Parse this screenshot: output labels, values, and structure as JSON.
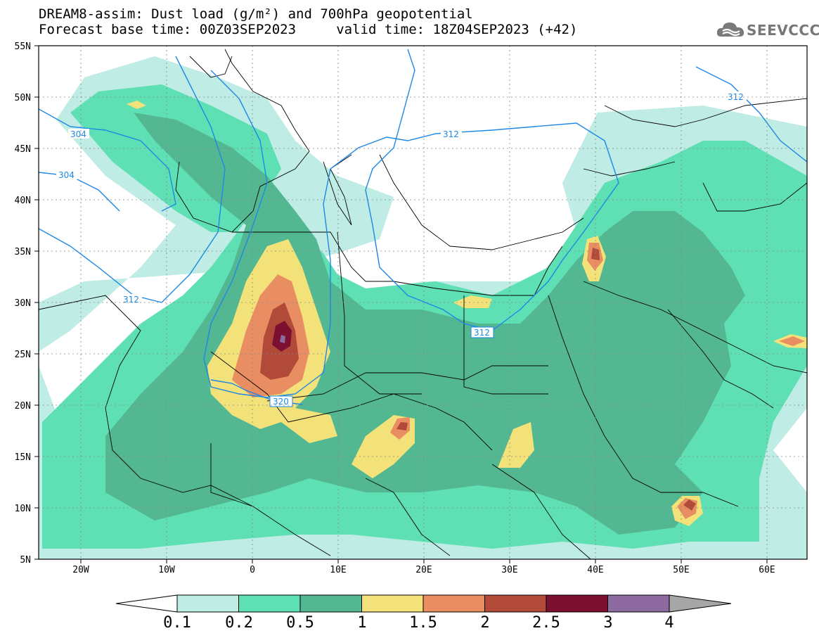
{
  "title_line1": "DREAM8-assim: Dust load (g/m²) and 700hPa geopotential",
  "title_line2": "Forecast base time: 00Z03SEP2023     valid time: 18Z04SEP2023 (+42)",
  "logo_text": "SEEVCCC",
  "axes": {
    "lon_labels": [
      "20W",
      "10W",
      "0",
      "10E",
      "20E",
      "30E",
      "40E",
      "50E",
      "60E"
    ],
    "lat_labels": [
      "55N",
      "50N",
      "45N",
      "40N",
      "35N",
      "30N",
      "25N",
      "20N",
      "15N",
      "10N",
      "5N"
    ]
  },
  "contour_labels": [
    "304",
    "304",
    "312",
    "312",
    "312",
    "312",
    "320"
  ],
  "colorbar": {
    "labels": [
      "0.1",
      "0.2",
      "0.5",
      "1",
      "1.5",
      "2",
      "2.5",
      "3",
      "4"
    ],
    "colors": [
      "#bfece4",
      "#5ee0b4",
      "#53b891",
      "#f3e27a",
      "#e98e62",
      "#b24a3a",
      "#7b1030",
      "#8d6aa0"
    ],
    "under_color": "#ffffff",
    "over_color": "#a6a6a6"
  },
  "colors": {
    "contour": "#1e88e5",
    "coast": "#000000"
  }
}
